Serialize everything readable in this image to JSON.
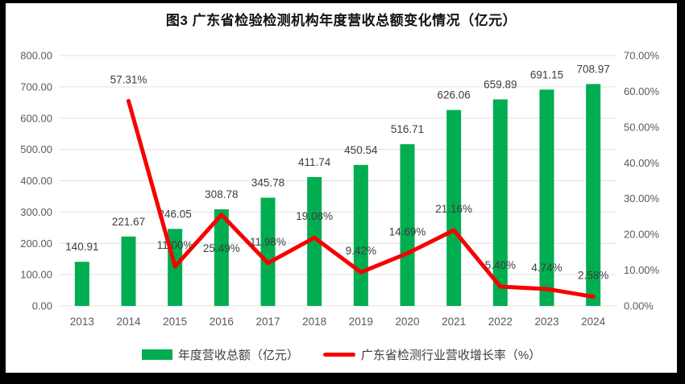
{
  "title": "图3 广东省检验检测机构年度营收总额变化情况（亿元）",
  "legend": [
    {
      "label": "年度营收总额（亿元）",
      "swatch": "bar",
      "color": "#00ad50"
    },
    {
      "label": "广东省检测行业营收增长率（%）",
      "swatch": "line",
      "color": "#f80000"
    }
  ],
  "colors": {
    "bar_green": "#00ad50",
    "line_red": "#f80000",
    "gridline": "#e0e0e0",
    "axis_text": "#595959",
    "data_label_text": "#3d3d3d",
    "frame": "#000000"
  },
  "chart_data": {
    "type": "bar",
    "subtype": "combo-bar-line-dual-axis",
    "title": "图3 广东省检验检测机构年度营收总额变化情况（亿元）",
    "categories": [
      "2013",
      "2014",
      "2015",
      "2016",
      "2017",
      "2018",
      "2019",
      "2020",
      "2021",
      "2022",
      "2023",
      "2024"
    ],
    "series": [
      {
        "name": "年度营收总额（亿元）",
        "type": "bar",
        "axis": "left",
        "color": "#00ad50",
        "values": [
          140.91,
          221.67,
          246.05,
          308.78,
          345.78,
          411.74,
          450.54,
          516.71,
          626.06,
          659.89,
          691.15,
          708.97
        ]
      },
      {
        "name": "广东省检测行业营收增长率（%）",
        "type": "line",
        "axis": "right",
        "color": "#f80000",
        "values": [
          null,
          57.31,
          11.0,
          25.49,
          11.98,
          19.08,
          9.42,
          14.69,
          21.16,
          5.4,
          4.74,
          2.58
        ],
        "label_positions": [
          null,
          "above",
          "above",
          "below",
          "above",
          "above",
          "above",
          "above",
          "above",
          "above",
          "above",
          "above"
        ]
      }
    ],
    "left_axis": {
      "min": 0,
      "max": 800,
      "step": 100,
      "tick_labels": [
        "0.00",
        "100.00",
        "200.00",
        "300.00",
        "400.00",
        "500.00",
        "600.00",
        "700.00",
        "800.00"
      ]
    },
    "right_axis": {
      "min": 0,
      "max": 70,
      "step": 10,
      "tick_labels": [
        "0.00%",
        "10.00%",
        "20.00%",
        "30.00%",
        "40.00%",
        "50.00%",
        "60.00%",
        "70.00%"
      ]
    },
    "grid": true,
    "data_labels": true,
    "legend_position": "bottom"
  }
}
